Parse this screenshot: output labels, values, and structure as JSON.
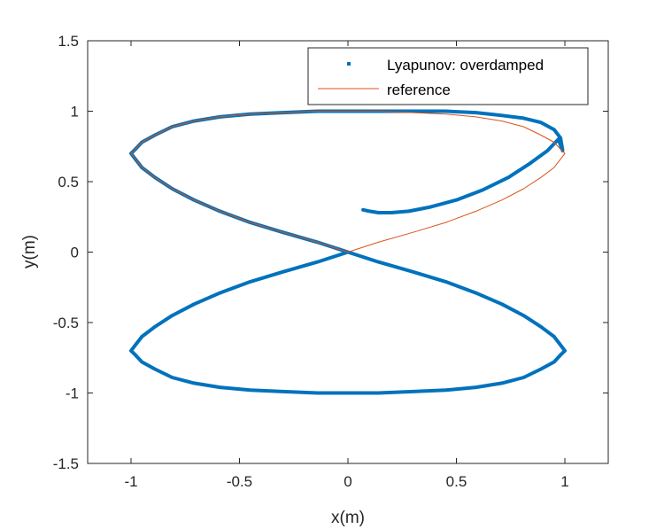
{
  "chart_data": {
    "type": "line",
    "title": "",
    "xlabel": "x(m)",
    "ylabel": "y(m)",
    "xlim": [
      -1.2,
      1.2
    ],
    "ylim": [
      -1.5,
      1.5
    ],
    "xticks": [
      -1,
      -0.5,
      0,
      0.5,
      1
    ],
    "xtick_labels": [
      "-1",
      "-0.5",
      "0",
      "0.5",
      "1"
    ],
    "yticks": [
      -1.5,
      -1,
      -0.5,
      0,
      0.5,
      1,
      1.5
    ],
    "ytick_labels": [
      "-1.5",
      "-1",
      "-0.5",
      "0",
      "0.5",
      "1",
      "1.5"
    ],
    "grid": false,
    "legend_position": "top-right",
    "series": [
      {
        "name": "Lyapunov: overdamped",
        "style": "markers",
        "color": "#0072BD",
        "x": [
          0.07,
          0.1,
          0.14,
          0.2,
          0.28,
          0.38,
          0.5,
          0.62,
          0.74,
          0.84,
          0.92,
          0.97,
          0.99,
          0.98,
          0.95,
          0.89,
          0.81,
          0.71,
          0.59,
          0.45,
          0.3,
          0.14,
          0.0,
          -0.14,
          -0.3,
          -0.45,
          -0.59,
          -0.71,
          -0.81,
          -0.89,
          -0.95,
          -0.98,
          -1.0,
          -0.98,
          -0.95,
          -0.89,
          -0.81,
          -0.71,
          -0.59,
          -0.45,
          -0.3,
          -0.14,
          0.0,
          0.14,
          0.3,
          0.45,
          0.59,
          0.71,
          0.81,
          0.89,
          0.95,
          0.98,
          1.0,
          0.98,
          0.95,
          0.89,
          0.81,
          0.71,
          0.59,
          0.45,
          0.3,
          0.14,
          0.0,
          -0.14,
          -0.3,
          -0.45,
          -0.59,
          -0.71,
          -0.81,
          -0.89,
          -0.95,
          -0.98,
          -1.0,
          -0.98,
          -0.95,
          -0.89,
          -0.81,
          -0.71,
          -0.59,
          -0.45,
          -0.3,
          -0.14,
          0.0
        ],
        "y": [
          0.3,
          0.29,
          0.28,
          0.28,
          0.29,
          0.32,
          0.37,
          0.44,
          0.53,
          0.63,
          0.72,
          0.8,
          0.72,
          0.81,
          0.87,
          0.92,
          0.95,
          0.97,
          0.99,
          1.0,
          1.0,
          1.0,
          1.0,
          1.0,
          0.99,
          0.98,
          0.96,
          0.93,
          0.89,
          0.83,
          0.78,
          0.73,
          0.7,
          0.66,
          0.6,
          0.53,
          0.45,
          0.37,
          0.29,
          0.21,
          0.14,
          0.07,
          0.0,
          -0.07,
          -0.14,
          -0.21,
          -0.29,
          -0.37,
          -0.45,
          -0.53,
          -0.6,
          -0.66,
          -0.7,
          -0.73,
          -0.78,
          -0.83,
          -0.89,
          -0.93,
          -0.96,
          -0.98,
          -0.99,
          -1.0,
          -1.0,
          -1.0,
          -0.99,
          -0.98,
          -0.96,
          -0.93,
          -0.89,
          -0.83,
          -0.78,
          -0.73,
          -0.7,
          -0.66,
          -0.6,
          -0.53,
          -0.45,
          -0.37,
          -0.29,
          -0.21,
          -0.14,
          -0.07,
          0.0
        ]
      },
      {
        "name": "reference",
        "style": "line",
        "color": "#D95319",
        "x": [
          0.0,
          0.14,
          0.3,
          0.45,
          0.59,
          0.71,
          0.81,
          0.89,
          0.95,
          0.98,
          1.0,
          0.98,
          0.95,
          0.89,
          0.81,
          0.71,
          0.59,
          0.45,
          0.3,
          0.14,
          0.0,
          -0.14,
          -0.3,
          -0.45,
          -0.59,
          -0.71,
          -0.81,
          -0.89,
          -0.95,
          -0.98,
          -1.0,
          -0.98,
          -0.95,
          -0.89,
          -0.81,
          -0.71,
          -0.59,
          -0.45,
          -0.3,
          -0.14,
          0.0
        ],
        "y": [
          0.0,
          0.07,
          0.14,
          0.21,
          0.29,
          0.37,
          0.45,
          0.53,
          0.6,
          0.66,
          0.7,
          0.73,
          0.78,
          0.83,
          0.89,
          0.93,
          0.96,
          0.98,
          0.99,
          1.0,
          1.0,
          1.0,
          0.99,
          0.98,
          0.96,
          0.93,
          0.89,
          0.83,
          0.78,
          0.73,
          0.7,
          0.66,
          0.6,
          0.53,
          0.45,
          0.37,
          0.29,
          0.21,
          0.14,
          0.07,
          0.0
        ]
      }
    ]
  }
}
